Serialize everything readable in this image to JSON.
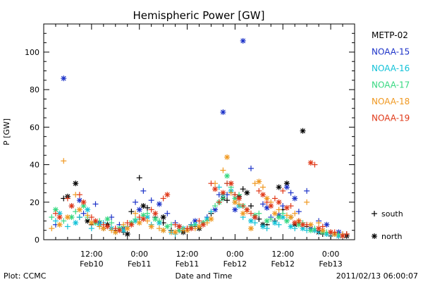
{
  "chart_data": {
    "type": "scatter",
    "title": "Hemispheric Power [GW]",
    "ylabel": "P [GW]",
    "xlabel": "Date and Time",
    "xlim": [
      0,
      78
    ],
    "ylim": [
      0,
      115
    ],
    "yticks": [
      0,
      20,
      40,
      60,
      80,
      100
    ],
    "xticks": [
      {
        "x": 12,
        "time": "12:00",
        "day": "Feb10"
      },
      {
        "x": 24,
        "time": "0:00",
        "day": "Feb11"
      },
      {
        "x": 36,
        "time": "12:00",
        "day": "Feb11"
      },
      {
        "x": 48,
        "time": "0:00",
        "day": "Feb12"
      },
      {
        "x": 60,
        "time": "12:00",
        "day": "Feb12"
      },
      {
        "x": 72,
        "time": "0:00",
        "day": "Feb13"
      }
    ],
    "x_unit": "hours since 2011-02-10 00:00",
    "legend_position": "right",
    "markers_legend": [
      {
        "symbol": "+",
        "label": "south"
      },
      {
        "symbol": "*",
        "label": "north"
      }
    ],
    "series": [
      {
        "name": "METP-02",
        "color": "#000000",
        "south": [
          [
            5,
            22
          ],
          [
            9,
            12
          ],
          [
            12,
            8
          ],
          [
            15,
            6
          ],
          [
            18,
            5
          ],
          [
            20,
            4
          ],
          [
            22,
            15
          ],
          [
            24,
            33
          ],
          [
            26,
            17
          ],
          [
            28,
            12
          ],
          [
            30,
            9
          ],
          [
            32,
            5
          ],
          [
            34,
            5
          ],
          [
            36,
            6
          ],
          [
            38,
            7
          ],
          [
            40,
            9
          ],
          [
            42,
            14
          ],
          [
            44,
            20
          ],
          [
            46,
            21
          ],
          [
            48,
            24
          ],
          [
            50,
            27
          ],
          [
            52,
            18
          ],
          [
            54,
            11
          ],
          [
            56,
            8
          ],
          [
            58,
            10
          ],
          [
            60,
            16
          ],
          [
            62,
            12
          ],
          [
            64,
            9
          ],
          [
            66,
            7
          ],
          [
            68,
            5
          ],
          [
            70,
            3
          ],
          [
            72,
            2
          ],
          [
            74,
            2
          ],
          [
            76,
            3
          ]
        ],
        "north": [
          [
            6,
            23
          ],
          [
            8,
            30
          ],
          [
            11,
            10
          ],
          [
            16,
            8
          ],
          [
            21,
            3
          ],
          [
            25,
            18
          ],
          [
            30,
            12
          ],
          [
            35,
            4
          ],
          [
            39,
            6
          ],
          [
            45,
            22
          ],
          [
            49,
            23
          ],
          [
            51,
            25
          ],
          [
            55,
            8
          ],
          [
            59,
            28
          ],
          [
            61,
            30
          ],
          [
            63,
            8
          ],
          [
            65,
            58
          ],
          [
            69,
            4
          ],
          [
            73,
            3
          ],
          [
            76,
            2
          ]
        ]
      },
      {
        "name": "NOAA-15",
        "color": "#1c32c8",
        "south": [
          [
            3,
            8
          ],
          [
            7,
            18
          ],
          [
            10,
            14
          ],
          [
            13,
            19
          ],
          [
            17,
            12
          ],
          [
            19,
            8
          ],
          [
            23,
            20
          ],
          [
            25,
            26
          ],
          [
            27,
            21
          ],
          [
            31,
            14
          ],
          [
            33,
            9
          ],
          [
            37,
            8
          ],
          [
            41,
            12
          ],
          [
            44,
            24
          ],
          [
            46,
            24
          ],
          [
            49,
            22
          ],
          [
            52,
            38
          ],
          [
            55,
            19
          ],
          [
            57,
            12
          ],
          [
            60,
            18
          ],
          [
            62,
            25
          ],
          [
            64,
            15
          ],
          [
            66,
            26
          ],
          [
            69,
            10
          ],
          [
            72,
            4
          ],
          [
            75,
            3
          ]
        ],
        "north": [
          [
            5,
            86
          ],
          [
            9,
            21
          ],
          [
            14,
            9
          ],
          [
            20,
            6
          ],
          [
            24,
            16
          ],
          [
            29,
            19
          ],
          [
            34,
            7
          ],
          [
            38,
            10
          ],
          [
            43,
            16
          ],
          [
            45,
            68
          ],
          [
            48,
            16
          ],
          [
            50,
            106
          ],
          [
            53,
            12
          ],
          [
            56,
            17
          ],
          [
            59,
            13
          ],
          [
            61,
            28
          ],
          [
            63,
            22
          ],
          [
            67,
            6
          ],
          [
            71,
            8
          ],
          [
            74,
            4
          ]
        ]
      },
      {
        "name": "NOAA-16",
        "color": "#12c2d8",
        "south": [
          [
            3,
            10
          ],
          [
            6,
            7
          ],
          [
            9,
            12
          ],
          [
            12,
            6
          ],
          [
            15,
            9
          ],
          [
            18,
            4
          ],
          [
            21,
            7
          ],
          [
            24,
            11
          ],
          [
            27,
            8
          ],
          [
            30,
            5
          ],
          [
            33,
            3
          ],
          [
            36,
            5
          ],
          [
            39,
            7
          ],
          [
            42,
            15
          ],
          [
            44,
            28
          ],
          [
            46,
            30
          ],
          [
            48,
            20
          ],
          [
            50,
            12
          ],
          [
            53,
            9
          ],
          [
            56,
            6
          ],
          [
            59,
            8
          ],
          [
            61,
            10
          ],
          [
            63,
            6
          ],
          [
            66,
            5
          ],
          [
            69,
            4
          ],
          [
            72,
            3
          ],
          [
            75,
            2
          ]
        ],
        "north": [
          [
            4,
            14
          ],
          [
            8,
            9
          ],
          [
            11,
            16
          ],
          [
            14,
            8
          ],
          [
            17,
            6
          ],
          [
            20,
            5
          ],
          [
            23,
            10
          ],
          [
            26,
            12
          ],
          [
            29,
            9
          ],
          [
            32,
            4
          ],
          [
            35,
            6
          ],
          [
            38,
            8
          ],
          [
            41,
            11
          ],
          [
            45,
            24
          ],
          [
            47,
            26
          ],
          [
            49,
            18
          ],
          [
            52,
            10
          ],
          [
            55,
            7
          ],
          [
            58,
            9
          ],
          [
            60,
            12
          ],
          [
            62,
            7
          ],
          [
            65,
            6
          ],
          [
            68,
            5
          ],
          [
            71,
            3
          ],
          [
            74,
            2
          ]
        ]
      },
      {
        "name": "NOAA-17",
        "color": "#36d880",
        "south": [
          [
            2,
            12
          ],
          [
            5,
            10
          ],
          [
            8,
            15
          ],
          [
            11,
            12
          ],
          [
            14,
            10
          ],
          [
            17,
            9
          ],
          [
            20,
            7
          ],
          [
            23,
            11
          ],
          [
            26,
            14
          ],
          [
            29,
            10
          ],
          [
            32,
            8
          ],
          [
            35,
            6
          ],
          [
            38,
            8
          ],
          [
            41,
            10
          ],
          [
            43,
            18
          ],
          [
            45,
            22
          ],
          [
            47,
            28
          ],
          [
            49,
            24
          ],
          [
            51,
            16
          ],
          [
            54,
            14
          ],
          [
            57,
            11
          ],
          [
            60,
            14
          ],
          [
            62,
            12
          ],
          [
            65,
            9
          ],
          [
            68,
            6
          ],
          [
            71,
            4
          ],
          [
            74,
            3
          ]
        ],
        "north": [
          [
            3,
            16
          ],
          [
            7,
            12
          ],
          [
            10,
            18
          ],
          [
            13,
            9
          ],
          [
            16,
            11
          ],
          [
            19,
            6
          ],
          [
            22,
            9
          ],
          [
            25,
            13
          ],
          [
            28,
            11
          ],
          [
            31,
            7
          ],
          [
            34,
            5
          ],
          [
            37,
            7
          ],
          [
            40,
            9
          ],
          [
            44,
            20
          ],
          [
            46,
            34
          ],
          [
            48,
            22
          ],
          [
            50,
            18
          ],
          [
            53,
            13
          ],
          [
            56,
            10
          ],
          [
            59,
            12
          ],
          [
            61,
            10
          ],
          [
            64,
            8
          ],
          [
            67,
            5
          ],
          [
            70,
            4
          ],
          [
            73,
            3
          ]
        ]
      },
      {
        "name": "NOAA-18",
        "color": "#f09820",
        "south": [
          [
            2,
            6
          ],
          [
            5,
            42
          ],
          [
            8,
            24
          ],
          [
            11,
            13
          ],
          [
            14,
            7
          ],
          [
            17,
            5
          ],
          [
            20,
            8
          ],
          [
            23,
            14
          ],
          [
            26,
            10
          ],
          [
            29,
            6
          ],
          [
            32,
            4
          ],
          [
            35,
            5
          ],
          [
            38,
            6
          ],
          [
            41,
            9
          ],
          [
            43,
            30
          ],
          [
            45,
            37
          ],
          [
            47,
            25
          ],
          [
            49,
            19
          ],
          [
            51,
            15
          ],
          [
            53,
            30
          ],
          [
            55,
            28
          ],
          [
            57,
            20
          ],
          [
            59,
            16
          ],
          [
            61,
            13
          ],
          [
            63,
            14
          ],
          [
            66,
            20
          ],
          [
            69,
            9
          ],
          [
            72,
            4
          ],
          [
            75,
            3
          ]
        ],
        "north": [
          [
            4,
            8
          ],
          [
            6,
            12
          ],
          [
            9,
            16
          ],
          [
            12,
            9
          ],
          [
            15,
            6
          ],
          [
            18,
            4
          ],
          [
            21,
            6
          ],
          [
            24,
            9
          ],
          [
            27,
            7
          ],
          [
            30,
            5
          ],
          [
            33,
            4
          ],
          [
            36,
            5
          ],
          [
            39,
            7
          ],
          [
            42,
            11
          ],
          [
            46,
            44
          ],
          [
            48,
            20
          ],
          [
            50,
            14
          ],
          [
            52,
            6
          ],
          [
            54,
            31
          ],
          [
            56,
            22
          ],
          [
            58,
            14
          ],
          [
            62,
            12
          ],
          [
            64,
            10
          ],
          [
            67,
            8
          ],
          [
            70,
            5
          ],
          [
            73,
            3
          ]
        ]
      },
      {
        "name": "NOAA-19",
        "color": "#e03818",
        "south": [
          [
            3,
            14
          ],
          [
            6,
            22
          ],
          [
            9,
            24
          ],
          [
            12,
            12
          ],
          [
            15,
            8
          ],
          [
            18,
            6
          ],
          [
            21,
            9
          ],
          [
            24,
            12
          ],
          [
            27,
            16
          ],
          [
            30,
            22
          ],
          [
            33,
            8
          ],
          [
            36,
            6
          ],
          [
            39,
            10
          ],
          [
            42,
            30
          ],
          [
            44,
            20
          ],
          [
            46,
            30
          ],
          [
            48,
            24
          ],
          [
            50,
            18
          ],
          [
            52,
            14
          ],
          [
            54,
            26
          ],
          [
            56,
            20
          ],
          [
            58,
            22
          ],
          [
            60,
            26
          ],
          [
            62,
            18
          ],
          [
            64,
            10
          ],
          [
            66,
            8
          ],
          [
            68,
            40
          ],
          [
            70,
            7
          ],
          [
            73,
            4
          ],
          [
            76,
            3
          ]
        ],
        "north": [
          [
            4,
            12
          ],
          [
            7,
            18
          ],
          [
            10,
            20
          ],
          [
            13,
            10
          ],
          [
            16,
            7
          ],
          [
            19,
            5
          ],
          [
            22,
            8
          ],
          [
            25,
            11
          ],
          [
            28,
            14
          ],
          [
            31,
            24
          ],
          [
            34,
            7
          ],
          [
            37,
            6
          ],
          [
            40,
            8
          ],
          [
            43,
            27
          ],
          [
            45,
            25
          ],
          [
            47,
            30
          ],
          [
            49,
            22
          ],
          [
            51,
            16
          ],
          [
            53,
            12
          ],
          [
            55,
            24
          ],
          [
            57,
            18
          ],
          [
            59,
            20
          ],
          [
            61,
            17
          ],
          [
            63,
            9
          ],
          [
            65,
            8
          ],
          [
            67,
            41
          ],
          [
            69,
            6
          ],
          [
            72,
            4
          ],
          [
            75,
            2
          ]
        ]
      }
    ]
  },
  "footer": {
    "plot_credit": "Plot: CCMC",
    "timestamp": "2011/02/13 06:00:07"
  }
}
